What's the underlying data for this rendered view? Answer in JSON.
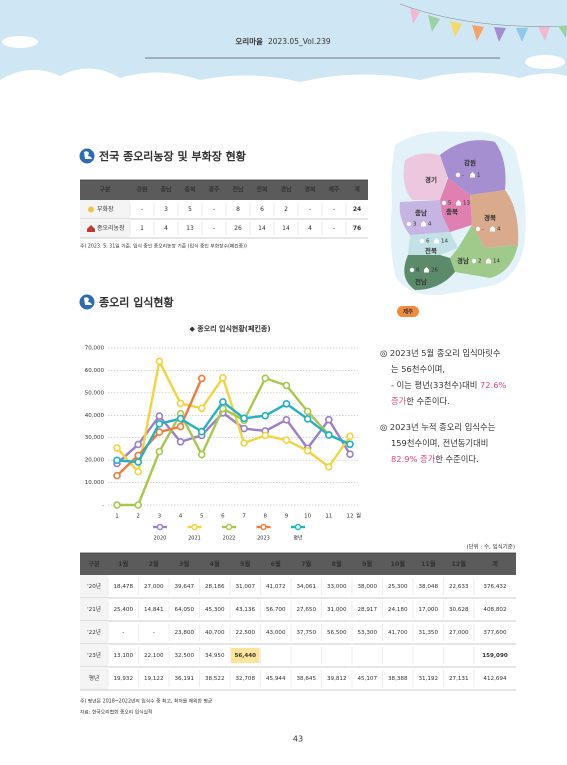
{
  "header": {
    "title": "오리마을",
    "issue": "2023.05_Vol.239"
  },
  "section1": {
    "heading": "전국 종오리농장 및 부화장 현황",
    "table": {
      "columns": [
        "구분",
        "강원",
        "충남",
        "충북",
        "광주",
        "전남",
        "전북",
        "경남",
        "경북",
        "제주",
        "계"
      ],
      "rows": [
        [
          "부화장",
          "-",
          "3",
          "5",
          "-",
          "8",
          "6",
          "2",
          "-",
          "-",
          "24"
        ],
        [
          "종오리농장",
          "1",
          "4",
          "13",
          "-",
          "26",
          "14",
          "14",
          "4",
          "-",
          "76"
        ]
      ]
    },
    "note": "주) 2023. 5. 31일 기준, 입식 중인 종오리농장 기준 (입식 중인 부화장수(페킨종))"
  },
  "map": {
    "regions": [
      {
        "name": "경기"
      },
      {
        "name": "강원",
        "hatchery": "-",
        "farm": "1"
      },
      {
        "name": "충북",
        "hatchery": "5",
        "farm": "13"
      },
      {
        "name": "충남",
        "hatchery": "3",
        "farm": "4"
      },
      {
        "name": "경북",
        "hatchery": "-",
        "farm": "4"
      },
      {
        "name": "전북",
        "hatchery": "6",
        "farm": "14"
      },
      {
        "name": "전남",
        "hatchery": "8",
        "farm": "26"
      },
      {
        "name": "경남",
        "hatchery": "2",
        "farm": "14"
      }
    ],
    "island": "제주"
  },
  "section2": {
    "heading": "종오리 입식현황",
    "body": [
      [
        {
          "text": "◎ 2023년 5월 종오리 입식마릿수"
        }
      ],
      [
        {
          "text": "는 56천수이며,"
        }
      ],
      [
        {
          "text": "- 이는 평년(33천수)대비 "
        },
        {
          "text": "72.6%",
          "emphasis": true
        }
      ],
      [
        {
          "text": "증가",
          "emphasis": true
        },
        {
          "text": "한 수준이다."
        }
      ],
      [
        {
          "text": "◎ 2023년 누적 종오리 입식수는"
        }
      ],
      [
        {
          "text": "159천수이며, 전년동기대비"
        }
      ],
      [
        {
          "text": "82.9% 증가",
          "emphasis": true
        },
        {
          "text": "한 수준이다."
        }
      ]
    ],
    "unit": "(단위 : 수, 입식기준)",
    "table": {
      "columns": [
        "구분",
        "1월",
        "2월",
        "3월",
        "4월",
        "5월",
        "6월",
        "7월",
        "8월",
        "9월",
        "10월",
        "11월",
        "12월",
        "계"
      ],
      "rows": [
        [
          "'20년",
          "18,478",
          "27,000",
          "39,647",
          "28,186",
          "31,007",
          "41,072",
          "34,061",
          "33,000",
          "38,000",
          "25,300",
          "38,048",
          "22,633",
          "376,432"
        ],
        [
          "'21년",
          "25,400",
          "14,841",
          "64,050",
          "45,300",
          "43,136",
          "56,700",
          "27,650",
          "31,000",
          "28,917",
          "24,180",
          "17,000",
          "30,628",
          "408,802"
        ],
        [
          "'22년",
          "-",
          "-",
          "23,800",
          "40,700",
          "22,500",
          "43,000",
          "37,750",
          "56,500",
          "53,300",
          "41,700",
          "31,350",
          "27,000",
          "377,600"
        ],
        [
          "'23년",
          "13,100",
          "22,100",
          "32,500",
          "34,950",
          "56,440",
          null,
          null,
          null,
          null,
          null,
          null,
          null,
          "159,090"
        ],
        [
          "평년",
          "19,932",
          "19,122",
          "36,191",
          "38,522",
          "32,708",
          "45,944",
          "38,645",
          "39,812",
          "45,107",
          "38,388",
          "31,192",
          "27,131",
          "412,694"
        ]
      ],
      "highlight": {
        "row": 3,
        "col": 5
      }
    },
    "notes": [
      "주) 평년은 2018~2022년의 입식수 중 최고, 최저를 제외한 평균",
      "자료: 한국오리협회 종오리 입식실적"
    ]
  },
  "chart_data": {
    "type": "line",
    "title": "◆ 종오리 입식현황(페킨종)",
    "categories": [
      "1",
      "2",
      "3",
      "4",
      "5",
      "6",
      "7",
      "8",
      "9",
      "10",
      "11",
      "12"
    ],
    "x_unit": "월",
    "ylim": [
      0,
      70000
    ],
    "yticks": [
      {
        "value": 0,
        "label": "-"
      },
      {
        "value": 10000,
        "label": "10,000"
      },
      {
        "value": 20000,
        "label": "20,000"
      },
      {
        "value": 30000,
        "label": "30,000"
      },
      {
        "value": 40000,
        "label": "40,000"
      },
      {
        "value": 50000,
        "label": "50,000"
      },
      {
        "value": 60000,
        "label": "60,000"
      },
      {
        "value": 70000,
        "label": "70,000"
      }
    ],
    "grid": true,
    "series": [
      {
        "name": "2020",
        "color": "#9a7fcb",
        "values": [
          18478,
          27000,
          39647,
          28186,
          31007,
          41072,
          34061,
          33000,
          38000,
          25300,
          38048,
          22633
        ]
      },
      {
        "name": "2021",
        "color": "#f2d43c",
        "values": [
          25400,
          14841,
          64050,
          45300,
          43136,
          56700,
          27650,
          31000,
          28917,
          24180,
          17000,
          30628
        ]
      },
      {
        "name": "2022",
        "color": "#a7c94b",
        "values": [
          0,
          0,
          23800,
          40700,
          22500,
          43000,
          37750,
          56500,
          53300,
          41700,
          31350,
          27000
        ]
      },
      {
        "name": "2023",
        "color": "#f07b3a",
        "values": [
          13100,
          22100,
          32500,
          34950,
          56440,
          null,
          null,
          null,
          null,
          null,
          null,
          null
        ]
      },
      {
        "name": "평년",
        "color": "#22b2c6",
        "values": [
          19932,
          19122,
          36191,
          38522,
          32708,
          45944,
          38645,
          39812,
          45107,
          38388,
          31192,
          27131
        ]
      }
    ]
  },
  "page_number": "43"
}
